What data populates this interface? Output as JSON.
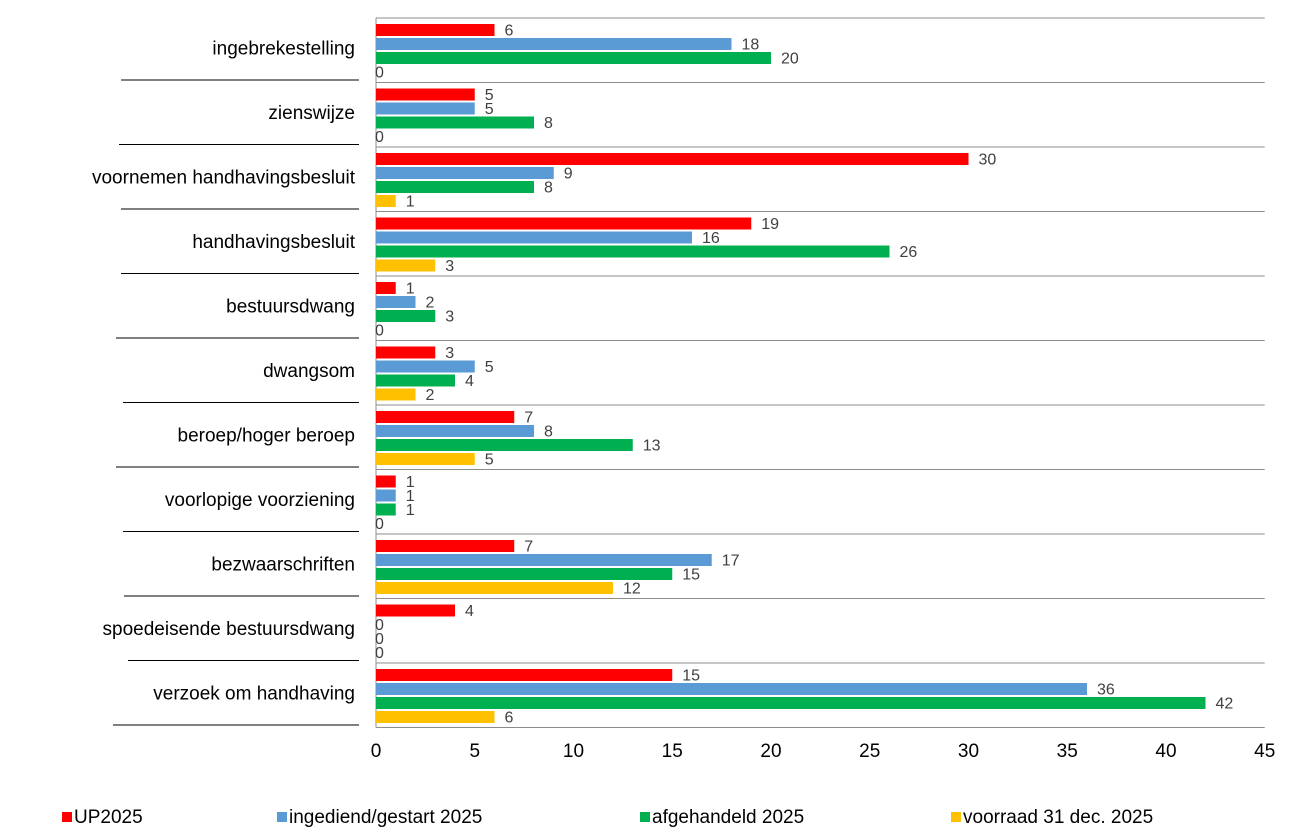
{
  "chart_data": {
    "type": "bar",
    "orientation": "horizontal",
    "categories": [
      "ingebrekestelling",
      "zienswijze",
      "voornemen handhavingsbesluit",
      "handhavingsbesluit",
      "bestuursdwang",
      "dwangsom",
      "beroep/hoger beroep",
      "voorlopige voorziening",
      "bezwaarschriften",
      "spoedeisende bestuursdwang",
      "verzoek om handhaving"
    ],
    "series": [
      {
        "name": "UP2025",
        "color": "#ff0000",
        "values": [
          6,
          5,
          30,
          19,
          1,
          3,
          7,
          1,
          7,
          4,
          15
        ]
      },
      {
        "name": "ingediend/gestart 2025",
        "color": "#5b9bd5",
        "values": [
          18,
          5,
          9,
          16,
          2,
          5,
          8,
          1,
          17,
          0,
          36
        ]
      },
      {
        "name": "afgehandeld 2025",
        "color": "#00b050",
        "values": [
          20,
          8,
          8,
          26,
          3,
          4,
          13,
          1,
          15,
          0,
          42
        ]
      },
      {
        "name": "voorraad 31 dec. 2025",
        "color": "#ffc000",
        "values": [
          0,
          0,
          1,
          3,
          0,
          2,
          5,
          0,
          12,
          0,
          6
        ]
      }
    ],
    "xlim": [
      0,
      45
    ],
    "xticks": [
      "0",
      "5",
      "10",
      "15",
      "20",
      "25",
      "30",
      "35",
      "40",
      "45"
    ],
    "grid": "horizontal category separators",
    "legend": "bottom",
    "data_labels": true
  }
}
